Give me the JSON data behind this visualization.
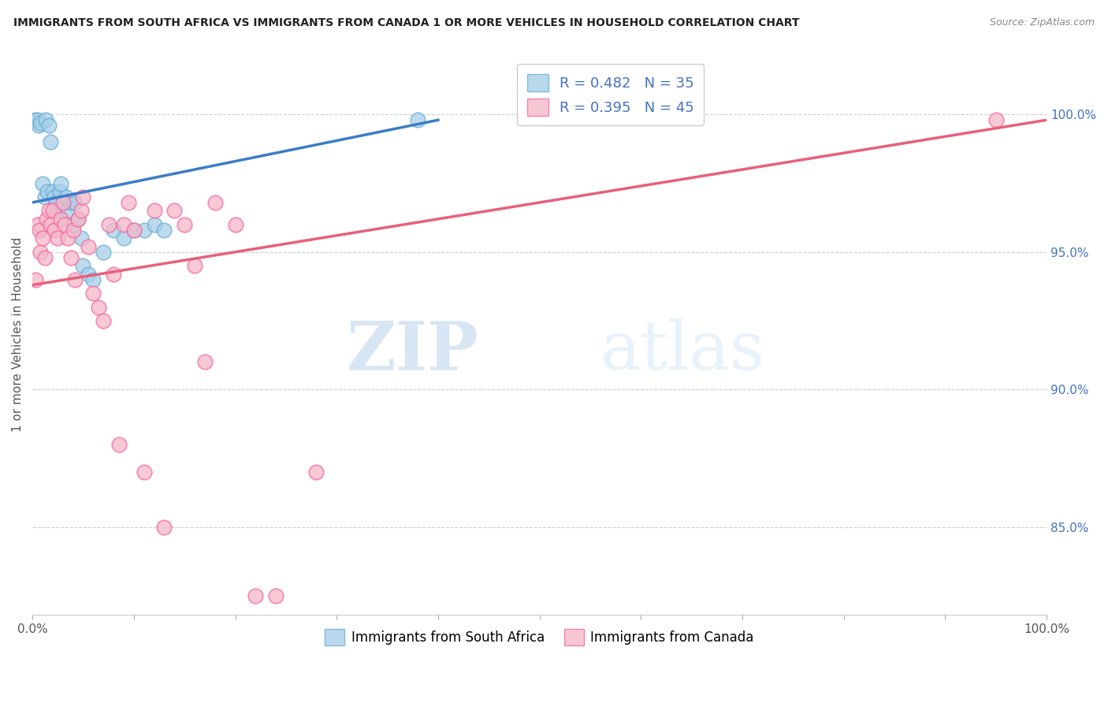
{
  "title": "IMMIGRANTS FROM SOUTH AFRICA VS IMMIGRANTS FROM CANADA 1 OR MORE VEHICLES IN HOUSEHOLD CORRELATION CHART",
  "source": "Source: ZipAtlas.com",
  "ylabel": "1 or more Vehicles in Household",
  "ylabel_right_ticks": [
    "100.0%",
    "95.0%",
    "90.0%",
    "85.0%"
  ],
  "ylabel_right_values": [
    1.0,
    0.95,
    0.9,
    0.85
  ],
  "xmin": 0.0,
  "xmax": 1.0,
  "ymin": 0.818,
  "ymax": 1.022,
  "legend_label_blue": "Immigrants from South Africa",
  "legend_label_pink": "Immigrants from Canada",
  "watermark_zip": "ZIP",
  "watermark_atlas": "atlas",
  "blue_color": "#a8cfe8",
  "pink_color": "#f4b8c8",
  "blue_edge_color": "#6baed6",
  "pink_edge_color": "#f768a1",
  "blue_line_color": "#3a7dc9",
  "pink_line_color": "#e8607a",
  "scatter_blue_x": [
    0.002,
    0.005,
    0.006,
    0.008,
    0.01,
    0.012,
    0.013,
    0.015,
    0.016,
    0.018,
    0.02,
    0.022,
    0.023,
    0.025,
    0.027,
    0.028,
    0.03,
    0.033,
    0.035,
    0.038,
    0.04,
    0.042,
    0.045,
    0.048,
    0.05,
    0.055,
    0.06,
    0.07,
    0.08,
    0.09,
    0.1,
    0.11,
    0.12,
    0.13,
    0.38
  ],
  "scatter_blue_y": [
    0.998,
    0.998,
    0.996,
    0.997,
    0.975,
    0.97,
    0.998,
    0.972,
    0.996,
    0.99,
    0.972,
    0.97,
    0.968,
    0.965,
    0.972,
    0.975,
    0.968,
    0.97,
    0.965,
    0.968,
    0.96,
    0.968,
    0.962,
    0.955,
    0.945,
    0.942,
    0.94,
    0.95,
    0.958,
    0.955,
    0.958,
    0.958,
    0.96,
    0.958,
    0.998
  ],
  "scatter_pink_x": [
    0.003,
    0.005,
    0.007,
    0.008,
    0.01,
    0.012,
    0.014,
    0.016,
    0.018,
    0.02,
    0.022,
    0.025,
    0.028,
    0.03,
    0.032,
    0.035,
    0.038,
    0.04,
    0.042,
    0.045,
    0.048,
    0.05,
    0.055,
    0.06,
    0.065,
    0.07,
    0.075,
    0.08,
    0.085,
    0.09,
    0.095,
    0.1,
    0.11,
    0.12,
    0.13,
    0.14,
    0.15,
    0.16,
    0.17,
    0.18,
    0.2,
    0.22,
    0.24,
    0.28,
    0.95
  ],
  "scatter_pink_y": [
    0.94,
    0.96,
    0.958,
    0.95,
    0.955,
    0.948,
    0.962,
    0.965,
    0.96,
    0.965,
    0.958,
    0.955,
    0.962,
    0.968,
    0.96,
    0.955,
    0.948,
    0.958,
    0.94,
    0.962,
    0.965,
    0.97,
    0.952,
    0.935,
    0.93,
    0.925,
    0.96,
    0.942,
    0.88,
    0.96,
    0.968,
    0.958,
    0.87,
    0.965,
    0.85,
    0.965,
    0.96,
    0.945,
    0.91,
    0.968,
    0.96,
    0.825,
    0.825,
    0.87,
    0.998
  ],
  "blue_line_x0": 0.0,
  "blue_line_x1": 0.4,
  "blue_line_y0": 0.968,
  "blue_line_y1": 0.998,
  "pink_line_x0": 0.0,
  "pink_line_x1": 1.0,
  "pink_line_y0": 0.938,
  "pink_line_y1": 0.998
}
